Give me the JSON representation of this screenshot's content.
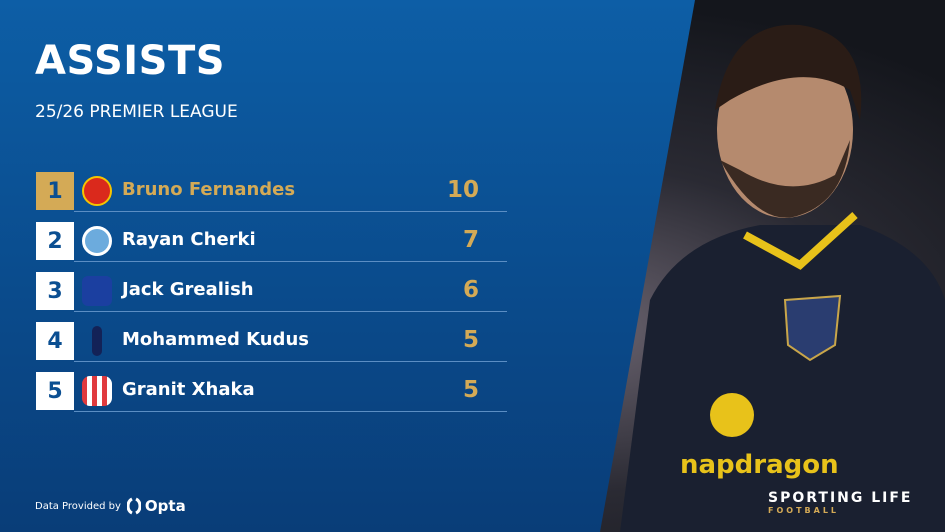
{
  "header": {
    "title": "ASSISTS",
    "subtitle": "25/26 PREMIER LEAGUE"
  },
  "accent_color": "#d4aa56",
  "rows": [
    {
      "rank": "1",
      "name": "Bruno Fernandes",
      "value": "10",
      "crest": "manchester-united-crest",
      "crest_color": "#da291c"
    },
    {
      "rank": "2",
      "name": "Rayan Cherki",
      "value": "7",
      "crest": "manchester-city-crest",
      "crest_color": "#6cabdd"
    },
    {
      "rank": "3",
      "name": "Jack Grealish",
      "value": "6",
      "crest": "everton-crest",
      "crest_color": "#1b3fa0"
    },
    {
      "rank": "4",
      "name": "Mohammed Kudus",
      "value": "5",
      "crest": "tottenham-crest",
      "crest_color": "#132257"
    },
    {
      "rank": "5",
      "name": "Granit Xhaka",
      "value": "5",
      "crest": "sunderland-crest",
      "crest_color": "#e03a3e"
    }
  ],
  "footer": {
    "provided_by": "Data Provided by",
    "provider": "Opta"
  },
  "brand": {
    "name": "SPORTING LIFE",
    "sub": "FOOTBALL"
  }
}
